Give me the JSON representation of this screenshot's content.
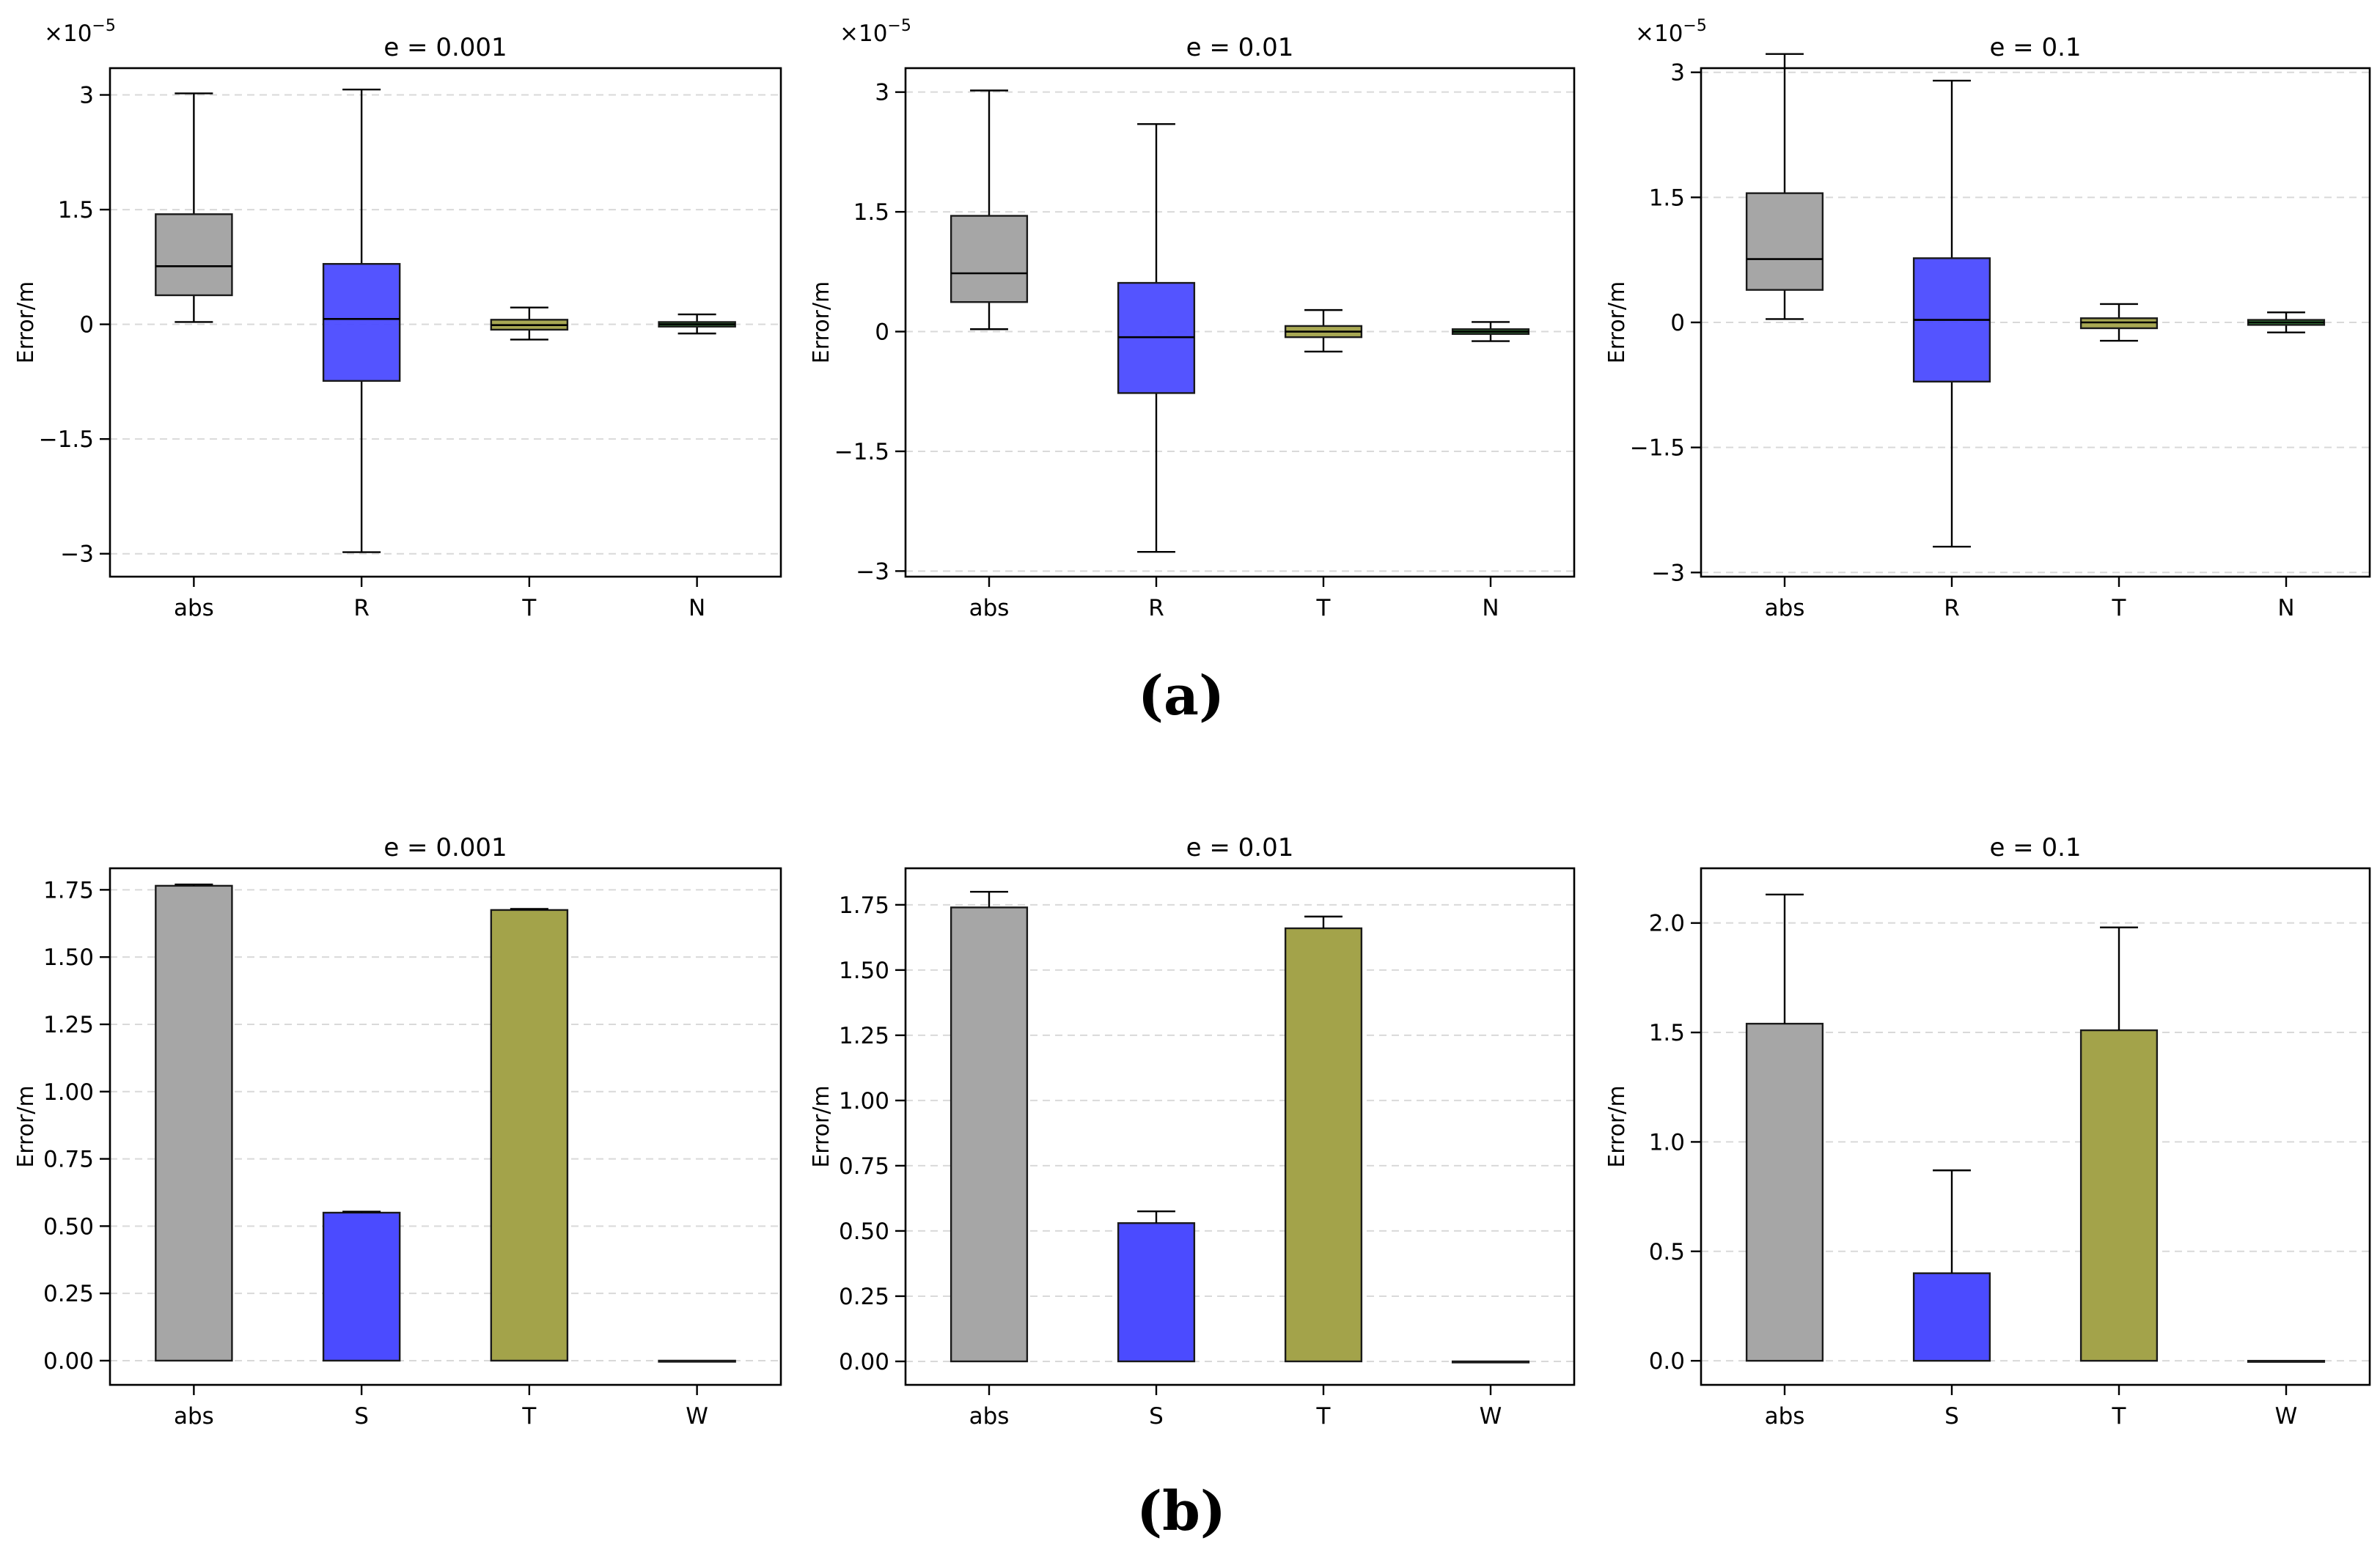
{
  "figure": {
    "caption_a": "(a)",
    "caption_b": "(b)"
  },
  "colors": {
    "abs": "#a6a6a6",
    "blue": "#4b4bff",
    "olive": "#a3a34a",
    "green": "#2e7d32",
    "grid": "#d9d9d9"
  },
  "chart_data": [
    {
      "type": "box",
      "panel": "a1",
      "title": "e = 0.001",
      "ylabel": "Error/m",
      "multiplier_label": "×10",
      "multiplier_exp": "−5",
      "ylim": [
        -3.3,
        3.35
      ],
      "yticks": [
        3,
        1.5,
        0,
        -1.5,
        -3
      ],
      "ytick_labels": [
        "3",
        "1.5",
        "0",
        "−1.5",
        "−3"
      ],
      "categories": [
        "abs",
        "R",
        "T",
        "N"
      ],
      "boxes": [
        {
          "name": "abs",
          "color": "abs",
          "whislo": 0.03,
          "q1": 0.38,
          "med": 0.76,
          "q3": 1.44,
          "whishi": 3.02
        },
        {
          "name": "R",
          "color": "blue",
          "whislo": -2.98,
          "q1": -0.74,
          "med": 0.07,
          "q3": 0.79,
          "whishi": 3.07
        },
        {
          "name": "T",
          "color": "olive",
          "whislo": -0.2,
          "q1": -0.07,
          "med": -0.01,
          "q3": 0.06,
          "whishi": 0.22
        },
        {
          "name": "N",
          "color": "green",
          "whislo": -0.12,
          "q1": -0.03,
          "med": 0.0,
          "q3": 0.03,
          "whishi": 0.13
        }
      ]
    },
    {
      "type": "box",
      "panel": "a2",
      "title": "e = 0.01",
      "ylabel": "Error/m",
      "multiplier_label": "×10",
      "multiplier_exp": "−5",
      "ylim": [
        -3.07,
        3.3
      ],
      "yticks": [
        3,
        1.5,
        0,
        -1.5,
        -3
      ],
      "ytick_labels": [
        "3",
        "1.5",
        "0",
        "−1.5",
        "−3"
      ],
      "categories": [
        "abs",
        "R",
        "T",
        "N"
      ],
      "boxes": [
        {
          "name": "abs",
          "color": "abs",
          "whislo": 0.03,
          "q1": 0.37,
          "med": 0.73,
          "q3": 1.45,
          "whishi": 3.02
        },
        {
          "name": "R",
          "color": "blue",
          "whislo": -2.76,
          "q1": -0.77,
          "med": -0.07,
          "q3": 0.61,
          "whishi": 2.6
        },
        {
          "name": "T",
          "color": "olive",
          "whislo": -0.25,
          "q1": -0.07,
          "med": 0.0,
          "q3": 0.07,
          "whishi": 0.27
        },
        {
          "name": "N",
          "color": "green",
          "whislo": -0.12,
          "q1": -0.03,
          "med": 0.0,
          "q3": 0.03,
          "whishi": 0.12
        }
      ]
    },
    {
      "type": "box",
      "panel": "a3",
      "title": "e = 0.1",
      "ylabel": "Error/m",
      "multiplier_label": "×10",
      "multiplier_exp": "−5",
      "ylim": [
        -3.05,
        3.05
      ],
      "yticks": [
        3,
        1.5,
        0,
        -1.5,
        -3
      ],
      "ytick_labels": [
        "3",
        "1.5",
        "0",
        "−1.5",
        "−3"
      ],
      "categories": [
        "abs",
        "R",
        "T",
        "N"
      ],
      "boxes": [
        {
          "name": "abs",
          "color": "abs",
          "whislo": 0.04,
          "q1": 0.39,
          "med": 0.76,
          "q3": 1.55,
          "whishi": 3.22
        },
        {
          "name": "R",
          "color": "blue",
          "whislo": -2.69,
          "q1": -0.71,
          "med": 0.03,
          "q3": 0.77,
          "whishi": 2.9
        },
        {
          "name": "T",
          "color": "olive",
          "whislo": -0.22,
          "q1": -0.07,
          "med": 0.0,
          "q3": 0.05,
          "whishi": 0.22
        },
        {
          "name": "N",
          "color": "green",
          "whislo": -0.12,
          "q1": -0.03,
          "med": 0.0,
          "q3": 0.03,
          "whishi": 0.12
        }
      ]
    },
    {
      "type": "bar",
      "panel": "b1",
      "title": "e = 0.001",
      "ylabel": "Error/m",
      "ylim": [
        -0.09,
        1.83
      ],
      "yticks": [
        0,
        0.25,
        0.5,
        0.75,
        1.0,
        1.25,
        1.5,
        1.75
      ],
      "ytick_labels": [
        "0.00",
        "0.25",
        "0.50",
        "0.75",
        "1.00",
        "1.25",
        "1.50",
        "1.75"
      ],
      "categories": [
        "abs",
        "S",
        "T",
        "W"
      ],
      "bars": [
        {
          "name": "abs",
          "color": "abs",
          "value": 1.765,
          "err": 0.005
        },
        {
          "name": "S",
          "color": "blue",
          "value": 0.55,
          "err": 0.004
        },
        {
          "name": "T",
          "color": "olive",
          "value": 1.675,
          "err": 0.004
        },
        {
          "name": "W",
          "color": "green",
          "value": 0.0,
          "err": 0.0
        }
      ]
    },
    {
      "type": "bar",
      "panel": "b2",
      "title": "e = 0.01",
      "ylabel": "Error/m",
      "ylim": [
        -0.09,
        1.89
      ],
      "yticks": [
        0,
        0.25,
        0.5,
        0.75,
        1.0,
        1.25,
        1.5,
        1.75
      ],
      "ytick_labels": [
        "0.00",
        "0.25",
        "0.50",
        "0.75",
        "1.00",
        "1.25",
        "1.50",
        "1.75"
      ],
      "categories": [
        "abs",
        "S",
        "T",
        "W"
      ],
      "bars": [
        {
          "name": "abs",
          "color": "abs",
          "value": 1.74,
          "err": 0.06
        },
        {
          "name": "S",
          "color": "blue",
          "value": 0.53,
          "err": 0.045
        },
        {
          "name": "T",
          "color": "olive",
          "value": 1.66,
          "err": 0.045
        },
        {
          "name": "W",
          "color": "green",
          "value": 0.0,
          "err": 0.0
        }
      ]
    },
    {
      "type": "bar",
      "panel": "b3",
      "title": "e = 0.1",
      "ylabel": "Error/m",
      "ylim": [
        -0.11,
        2.25
      ],
      "yticks": [
        0,
        0.5,
        1.0,
        1.5,
        2.0
      ],
      "ytick_labels": [
        "0.0",
        "0.5",
        "1.0",
        "1.5",
        "2.0"
      ],
      "categories": [
        "abs",
        "S",
        "T",
        "W"
      ],
      "bars": [
        {
          "name": "abs",
          "color": "abs",
          "value": 1.54,
          "err": 0.59
        },
        {
          "name": "S",
          "color": "blue",
          "value": 0.4,
          "err": 0.47
        },
        {
          "name": "T",
          "color": "olive",
          "value": 1.51,
          "err": 0.47
        },
        {
          "name": "W",
          "color": "green",
          "value": 0.0,
          "err": 0.0
        }
      ]
    }
  ]
}
